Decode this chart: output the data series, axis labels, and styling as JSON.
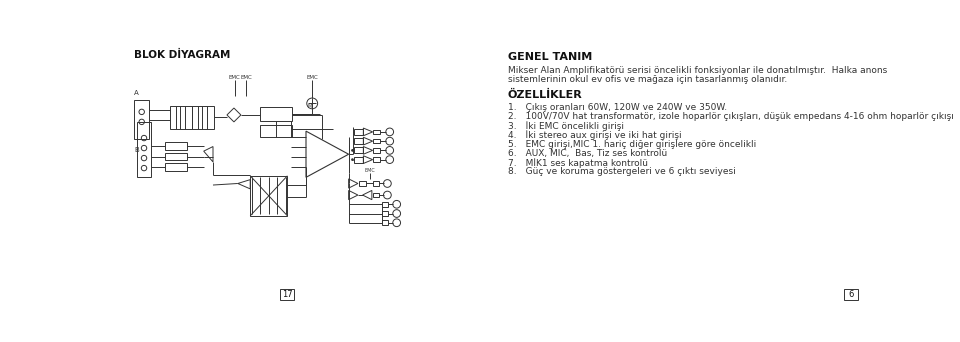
{
  "bg_color": "#ffffff",
  "left_title": "BLOK DİYAGRAM",
  "right_title": "GENEL TANIM",
  "intro_text": "Mikser Alan Amplifikatörü serisi öncelikli fonksiyonlar ile donatılmıştır.  Halka anons\nsistemlerinin okul ev ofis ve mağaza için tasarlanmış olanıdır.",
  "features_title": "ÖZELLİKLER",
  "features": [
    "Çıkış oranları 60W, 120W ve 240W ve 350W.",
    "100V/70V hat transformatör, izole hoparlör çıkışları, düşük empedans 4-16 ohm hoparlör çıkışı",
    "İki EMC öncelikli girişi",
    "İki stereo aux girişi ve iki hat girişi",
    "EMC girişi,MIC 1. hariç diğer girişlere göre öncelikli",
    "AUX, MIC,  Bas, Tiz ses kontrolü",
    "MİK1 ses kapatma kontrolü",
    "Güç ve koruma göstergeleri ve 6 çıktı seviyesi"
  ],
  "page_left": "17",
  "page_right": "6",
  "lc": "#333333",
  "bold_color": "#111111",
  "text_color": "#333333"
}
